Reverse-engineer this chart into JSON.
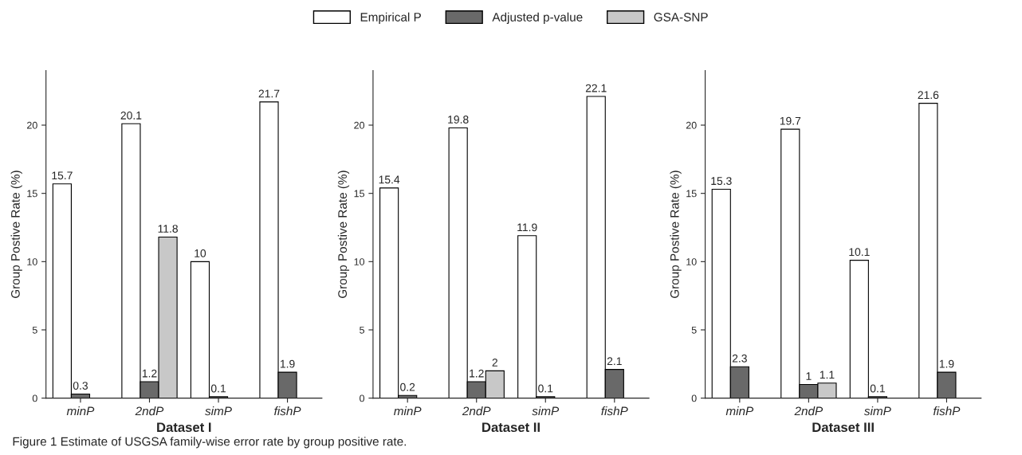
{
  "chart_data": [
    {
      "type": "bar",
      "xlabel": "Dataset I",
      "ylabel": "Group Postive Rate (%)",
      "categories": [
        "minP",
        "2ndP",
        "simP",
        "fishP"
      ],
      "ylim": [
        0,
        24
      ],
      "yticks": [
        0,
        5,
        10,
        15,
        20
      ],
      "data_labels": true,
      "legend": "top",
      "annotations": [
        "Figure 1 Estimate of USGSA family-wise error rate by group positive rate."
      ],
      "series": [
        {
          "name": "Empirical P",
          "color": "#ffffff",
          "values": [
            15.7,
            20.1,
            10,
            21.7
          ]
        },
        {
          "name": "Adjusted p-value",
          "color": "#696969",
          "values": [
            0.3,
            1.2,
            0.1,
            1.9
          ]
        },
        {
          "name": "GSA-SNP",
          "color": "#c8c8c8",
          "values": [
            null,
            11.8,
            null,
            null
          ]
        }
      ]
    },
    {
      "type": "bar",
      "xlabel": "Dataset II",
      "ylabel": "Group Postive Rate (%)",
      "categories": [
        "minP",
        "2ndP",
        "simP",
        "fishP"
      ],
      "ylim": [
        0,
        24
      ],
      "yticks": [
        0,
        5,
        10,
        15,
        20
      ],
      "data_labels": true,
      "series": [
        {
          "color": "#ffffff",
          "values": [
            15.4,
            19.8,
            11.9,
            22.1
          ]
        },
        {
          "color": "#696969",
          "values": [
            0.2,
            1.2,
            0.1,
            2.1
          ]
        },
        {
          "color": "#c8c8c8",
          "values": [
            null,
            2,
            null,
            null
          ]
        }
      ]
    },
    {
      "type": "bar",
      "xlabel": "Dataset III",
      "ylabel": "Group Postive Rate (%)",
      "categories": [
        "minP",
        "2ndP",
        "simP",
        "fishP"
      ],
      "ylim": [
        0,
        24
      ],
      "yticks": [
        0,
        5,
        10,
        15,
        20
      ],
      "data_labels": true,
      "series": [
        {
          "color": "#ffffff",
          "values": [
            15.3,
            19.7,
            10.1,
            21.6
          ]
        },
        {
          "color": "#696969",
          "values": [
            2.3,
            1,
            0.1,
            1.9
          ]
        },
        {
          "color": "#c8c8c8",
          "values": [
            null,
            1.1,
            null,
            null
          ]
        }
      ]
    }
  ]
}
